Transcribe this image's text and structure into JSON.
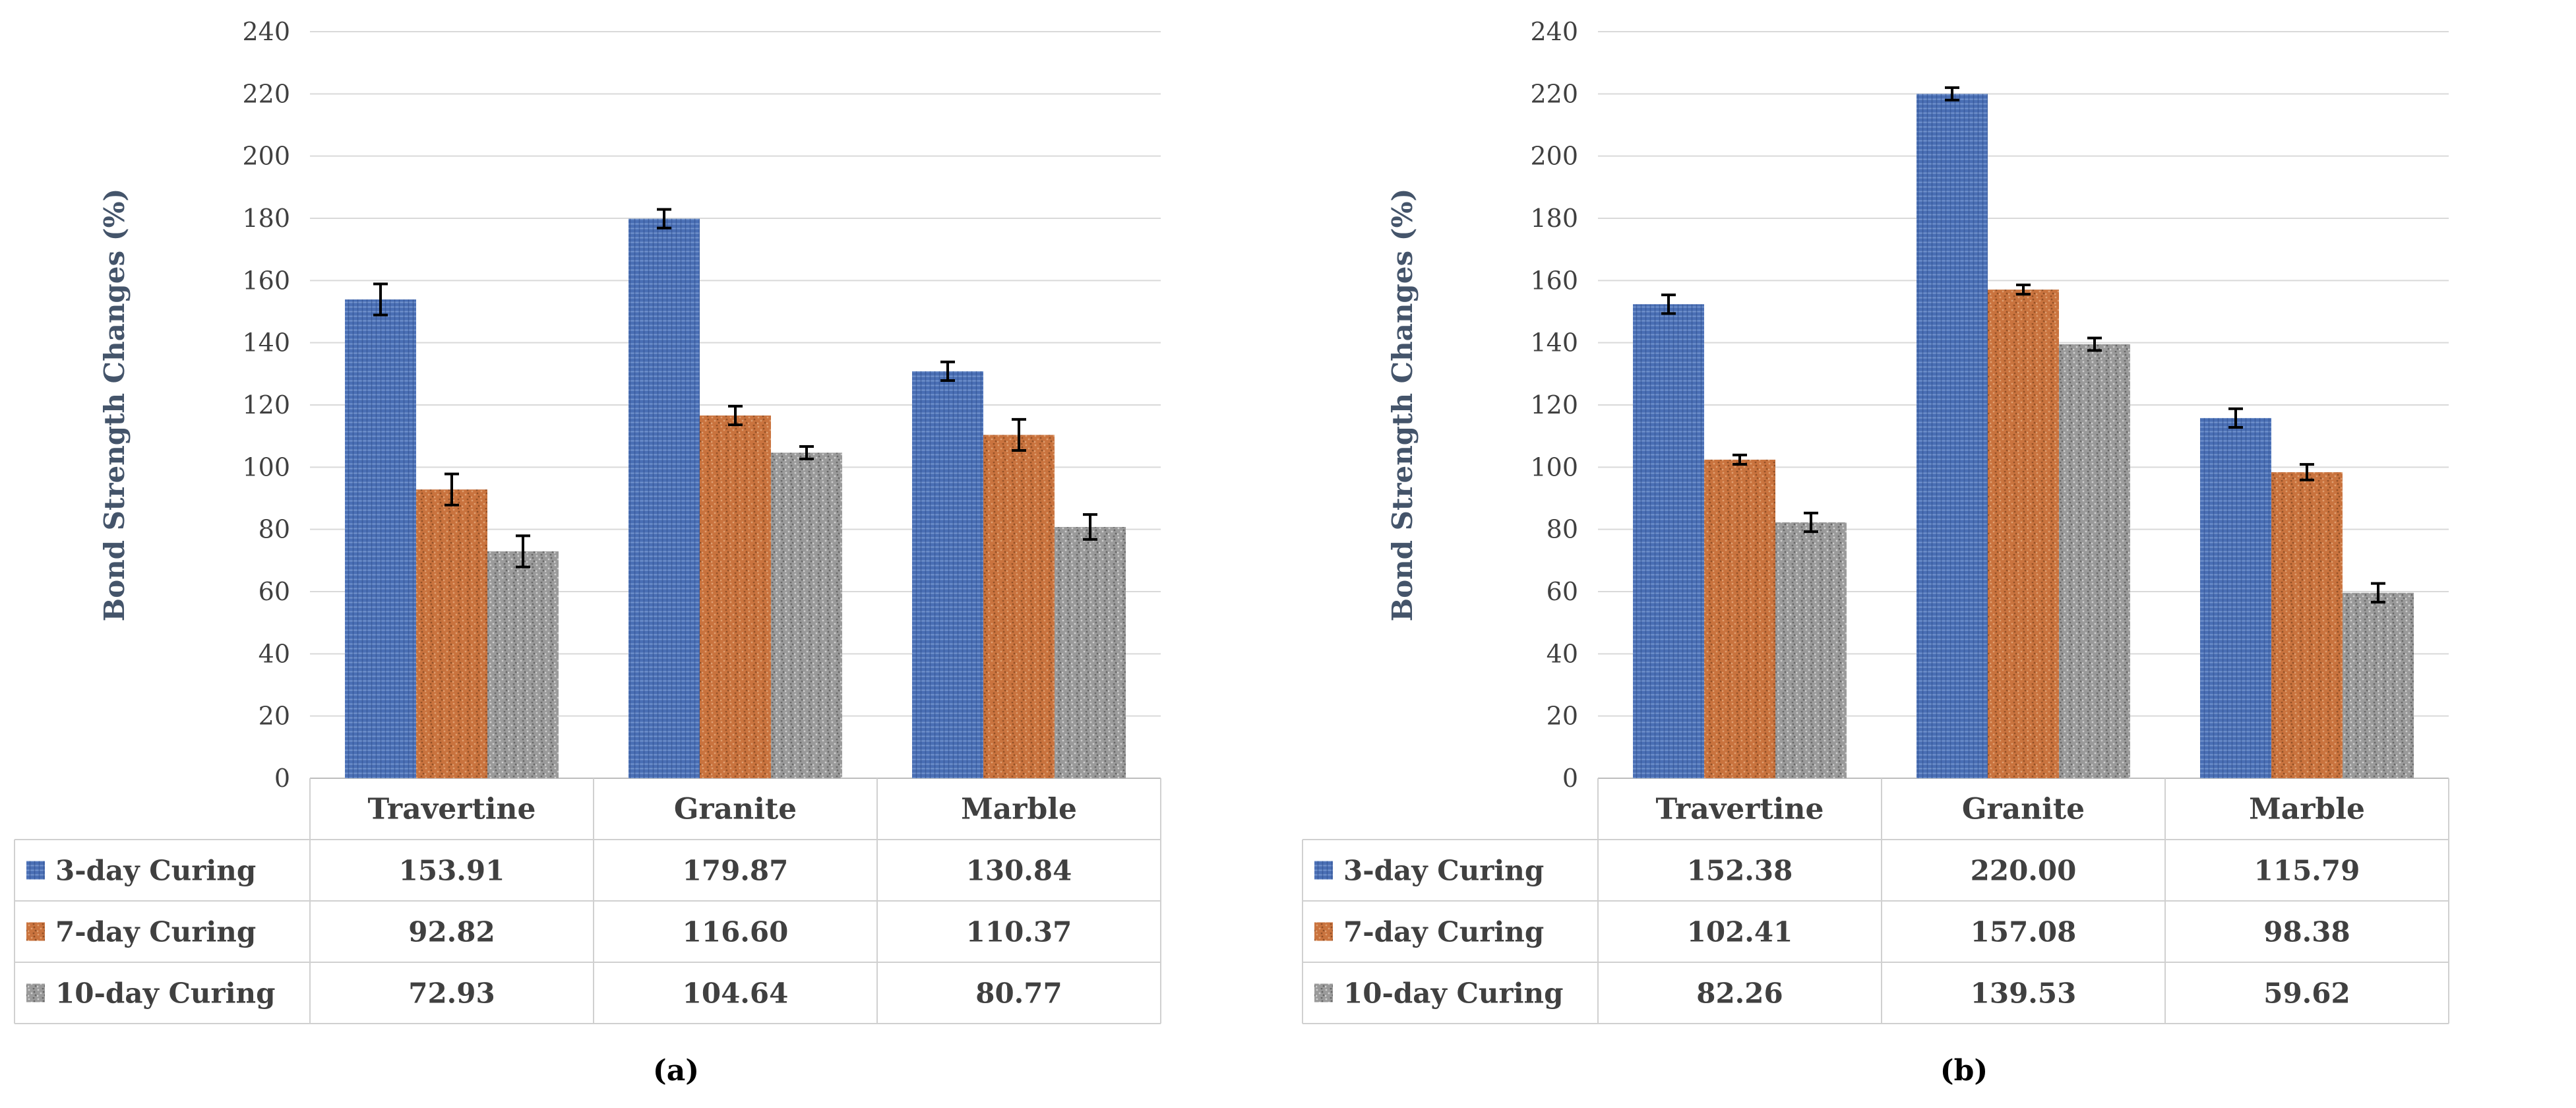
{
  "chart_data": [
    {
      "type": "bar",
      "panel_label": "(a)",
      "ylabel": "Bond Strength Changes (%)",
      "ylim": [
        0,
        240
      ],
      "yticks": [
        0,
        20,
        40,
        60,
        80,
        100,
        120,
        140,
        160,
        180,
        200,
        220,
        240
      ],
      "categories": [
        "Travertine",
        "Granite",
        "Marble"
      ],
      "series": [
        {
          "name": "3-day Curing",
          "values": [
            153.91,
            179.87,
            130.84
          ],
          "labels": [
            "153.91",
            "179.87",
            "130.84"
          ],
          "errors": [
            5,
            3,
            3
          ],
          "color": "#4a6fb5"
        },
        {
          "name": "7-day Curing",
          "values": [
            92.82,
            116.6,
            110.37
          ],
          "labels": [
            "92.82",
            "116.60",
            "110.37"
          ],
          "errors": [
            5,
            3,
            5
          ],
          "color": "#c9733e"
        },
        {
          "name": "10-day Curing",
          "values": [
            72.93,
            104.64,
            80.77
          ],
          "labels": [
            "72.93",
            "104.64",
            "80.77"
          ],
          "errors": [
            5,
            2,
            4
          ],
          "color": "#9a9a9a"
        }
      ]
    },
    {
      "type": "bar",
      "panel_label": "(b)",
      "ylabel": "Bond Strength Changes (%)",
      "ylim": [
        0,
        240
      ],
      "yticks": [
        0,
        20,
        40,
        60,
        80,
        100,
        120,
        140,
        160,
        180,
        200,
        220,
        240
      ],
      "categories": [
        "Travertine",
        "Granite",
        "Marble"
      ],
      "series": [
        {
          "name": "3-day Curing",
          "values": [
            152.38,
            220.0,
            115.79
          ],
          "labels": [
            "152.38",
            "220.00",
            "115.79"
          ],
          "errors": [
            3,
            2,
            3
          ],
          "color": "#4a6fb5"
        },
        {
          "name": "7-day Curing",
          "values": [
            102.41,
            157.08,
            98.38
          ],
          "labels": [
            "102.41",
            "157.08",
            "98.38"
          ],
          "errors": [
            1.5,
            1.5,
            2.5
          ],
          "color": "#c9733e"
        },
        {
          "name": "10-day Curing",
          "values": [
            82.26,
            139.53,
            59.62
          ],
          "labels": [
            "82.26",
            "139.53",
            "59.62"
          ],
          "errors": [
            3,
            2,
            3
          ],
          "color": "#9a9a9a"
        }
      ]
    }
  ]
}
